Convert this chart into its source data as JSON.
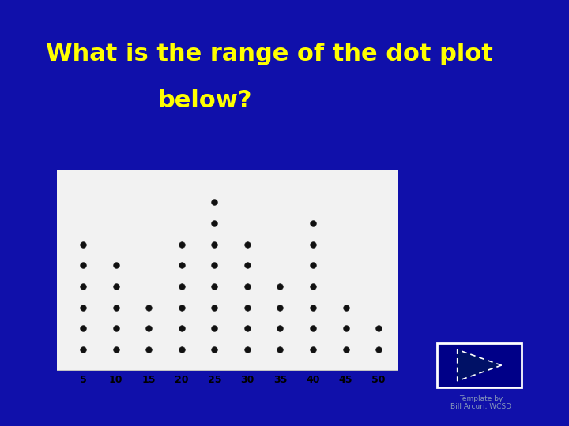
{
  "title_line1": "What is the range of the dot plot",
  "title_line2": "below?",
  "title_color": "#FFFF00",
  "bg_color": "#1010AA",
  "plot_bg_color": "#F2F2F2",
  "plot_border_color": "#BBBBBB",
  "dot_counts": {
    "5": 6,
    "10": 5,
    "15": 3,
    "20": 6,
    "25": 8,
    "30": 6,
    "35": 4,
    "40": 7,
    "45": 3,
    "50": 2
  },
  "x_ticks": [
    5,
    10,
    15,
    20,
    25,
    30,
    35,
    40,
    45,
    50
  ],
  "template_text": "Template by\nBill Arcuri, WCSD",
  "template_color": "#8899BB",
  "nav_button_color": "#000088",
  "nav_button_border": "#FFFFFF",
  "title_fontsize": 22,
  "tick_fontsize": 9
}
